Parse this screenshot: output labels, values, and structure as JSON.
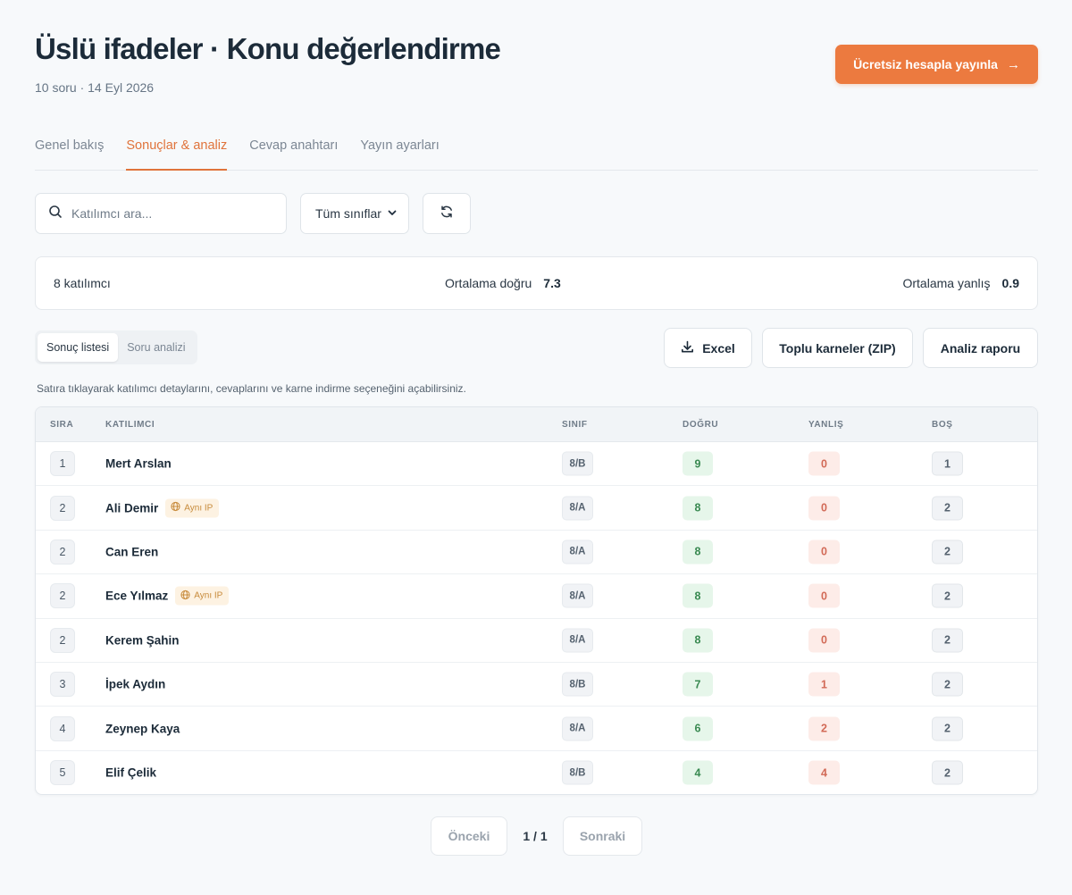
{
  "header": {
    "title": "Üslü ifadeler · Konu değerlendirme",
    "subtitle": "10 soru · 14 Eyl 2026",
    "publish_label": "Ücretsiz hesapla yayınla",
    "publish_icon": "arrow-right-icon",
    "accent_color": "#ec7a3f"
  },
  "tabs": [
    {
      "label": "Genel bakış",
      "active": false
    },
    {
      "label": "Sonuçlar & analiz",
      "active": true
    },
    {
      "label": "Cevap anahtarı",
      "active": false
    },
    {
      "label": "Yayın ayarları",
      "active": false
    }
  ],
  "filters": {
    "search_placeholder": "Katılımcı ara...",
    "class_select": "Tüm sınıflar",
    "refresh_icon": "refresh-icon"
  },
  "stats": {
    "participants": "8 katılımcı",
    "avg_correct_label": "Ortalama doğru",
    "avg_correct_value": "7.3",
    "avg_wrong_label": "Ortalama yanlış",
    "avg_wrong_value": "0.9"
  },
  "view_toggle": {
    "list_label": "Sonuç listesi",
    "analysis_label": "Soru analizi"
  },
  "actions": {
    "excel_label": "Excel",
    "zip_label": "Toplu karneler (ZIP)",
    "report_label": "Analiz raporu"
  },
  "hint": "Satıra tıklayarak katılımcı detaylarını, cevaplarını ve karne indirme seçeneğini açabilirsiniz.",
  "table": {
    "headers": {
      "rank": "SIRA",
      "participant": "KATILIMCI",
      "class": "SINIF",
      "correct": "DOĞRU",
      "wrong": "YANLIŞ",
      "empty": "BOŞ"
    },
    "ip_badge_label": "Aynı IP",
    "rows": [
      {
        "rank": "1",
        "name": "Mert Arslan",
        "same_ip": false,
        "class": "8/B",
        "correct": "9",
        "wrong": "0",
        "empty": "1"
      },
      {
        "rank": "2",
        "name": "Ali Demir",
        "same_ip": true,
        "class": "8/A",
        "correct": "8",
        "wrong": "0",
        "empty": "2"
      },
      {
        "rank": "2",
        "name": "Can Eren",
        "same_ip": false,
        "class": "8/A",
        "correct": "8",
        "wrong": "0",
        "empty": "2"
      },
      {
        "rank": "2",
        "name": "Ece Yılmaz",
        "same_ip": true,
        "class": "8/A",
        "correct": "8",
        "wrong": "0",
        "empty": "2"
      },
      {
        "rank": "2",
        "name": "Kerem Şahin",
        "same_ip": false,
        "class": "8/A",
        "correct": "8",
        "wrong": "0",
        "empty": "2"
      },
      {
        "rank": "3",
        "name": "İpek Aydın",
        "same_ip": false,
        "class": "8/B",
        "correct": "7",
        "wrong": "1",
        "empty": "2"
      },
      {
        "rank": "4",
        "name": "Zeynep Kaya",
        "same_ip": false,
        "class": "8/A",
        "correct": "6",
        "wrong": "2",
        "empty": "2"
      },
      {
        "rank": "5",
        "name": "Elif Çelik",
        "same_ip": false,
        "class": "8/B",
        "correct": "4",
        "wrong": "4",
        "empty": "2"
      }
    ]
  },
  "pagination": {
    "prev_label": "Önceki",
    "page": "1 / 1",
    "next_label": "Sonraki"
  }
}
